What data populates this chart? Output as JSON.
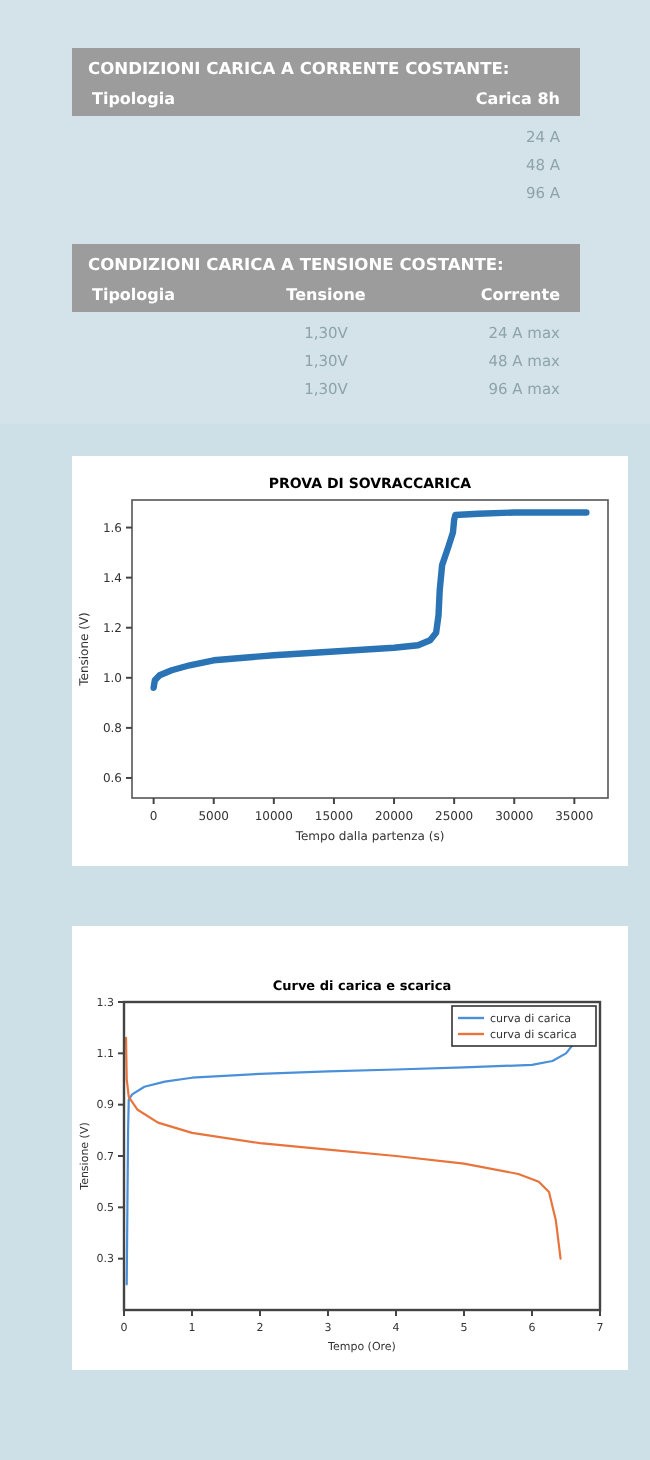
{
  "chart_data": [
    {
      "type": "other",
      "title": "CONDIZIONI CARICA A CORRENTE COSTANTE:",
      "categories": [
        "Tipologia",
        "Carica 8h"
      ],
      "annotations": [
        "24 A",
        "48 A",
        "96 A"
      ]
    },
    {
      "type": "other",
      "title": "CONDIZIONI CARICA A TENSIONE COSTANTE:",
      "categories": [
        "Tipologia",
        "Tensione",
        "Corrente"
      ],
      "annotations": [
        "1,30V",
        "24 A max",
        "1,30V",
        "48 A max",
        "1,30V",
        "96 A max"
      ]
    },
    {
      "type": "line",
      "title": "PROVA DI SOVRACCARICA",
      "xlabel": "Tempo dalla partenza (s)",
      "ylabel": "Tensione (V)",
      "xlim": [
        -1800,
        37800
      ],
      "ylim": [
        0.52,
        1.71
      ],
      "xticks": [
        0,
        5000,
        10000,
        15000,
        20000,
        25000,
        30000,
        35000
      ],
      "yticks": [
        0.6,
        0.8,
        {
          "value": 1.0,
          "label": "1.0"
        },
        1.2,
        1.4,
        1.6
      ],
      "grid": false,
      "legend": false,
      "series": [
        {
          "color": "#2a74b5",
          "x": [
            0,
            100,
            500,
            1500,
            3000,
            5000,
            7500,
            10000,
            15000,
            20000,
            22000,
            23000,
            23500,
            23700,
            23800,
            24000,
            24500,
            24900,
            25000,
            25100,
            27000,
            30000,
            36000
          ],
          "values": [
            0.96,
            0.99,
            1.01,
            1.03,
            1.05,
            1.07,
            1.08,
            1.09,
            1.105,
            1.12,
            1.13,
            1.15,
            1.18,
            1.25,
            1.35,
            1.45,
            1.52,
            1.58,
            1.63,
            1.65,
            1.655,
            1.66,
            1.66
          ]
        }
      ]
    },
    {
      "type": "line",
      "title": "Curve di carica e scarica",
      "xlabel": "Tempo (Ore)",
      "ylabel": "Tensione (V)",
      "xlim": [
        0,
        7
      ],
      "ylim": [
        0.1,
        1.3
      ],
      "xticks": [
        0,
        1,
        2,
        3,
        4,
        5,
        6,
        7
      ],
      "yticks": [
        0.3,
        0.5,
        0.7,
        0.9,
        1.1,
        1.3
      ],
      "grid": false,
      "legend": "top right",
      "series": [
        {
          "name": "curva di carica",
          "color": "#4a90d9",
          "x": [
            0.04,
            0.05,
            0.06,
            0.07,
            0.12,
            0.3,
            0.6,
            1,
            2,
            3,
            4,
            5,
            6,
            6.3,
            6.5,
            6.62
          ],
          "values": [
            0.2,
            0.5,
            0.8,
            0.92,
            0.94,
            0.97,
            0.99,
            1.005,
            1.02,
            1.03,
            1.037,
            1.045,
            1.055,
            1.07,
            1.1,
            1.14
          ]
        },
        {
          "name": "curva di scarica",
          "color": "#e8743b",
          "x": [
            0.03,
            0.04,
            0.07,
            0.2,
            0.5,
            1,
            2,
            3,
            4,
            5,
            5.8,
            6.1,
            6.25,
            6.35,
            6.42
          ],
          "values": [
            1.16,
            1.0,
            0.93,
            0.88,
            0.83,
            0.79,
            0.75,
            0.725,
            0.7,
            0.67,
            0.63,
            0.6,
            0.56,
            0.45,
            0.3
          ]
        }
      ]
    }
  ]
}
